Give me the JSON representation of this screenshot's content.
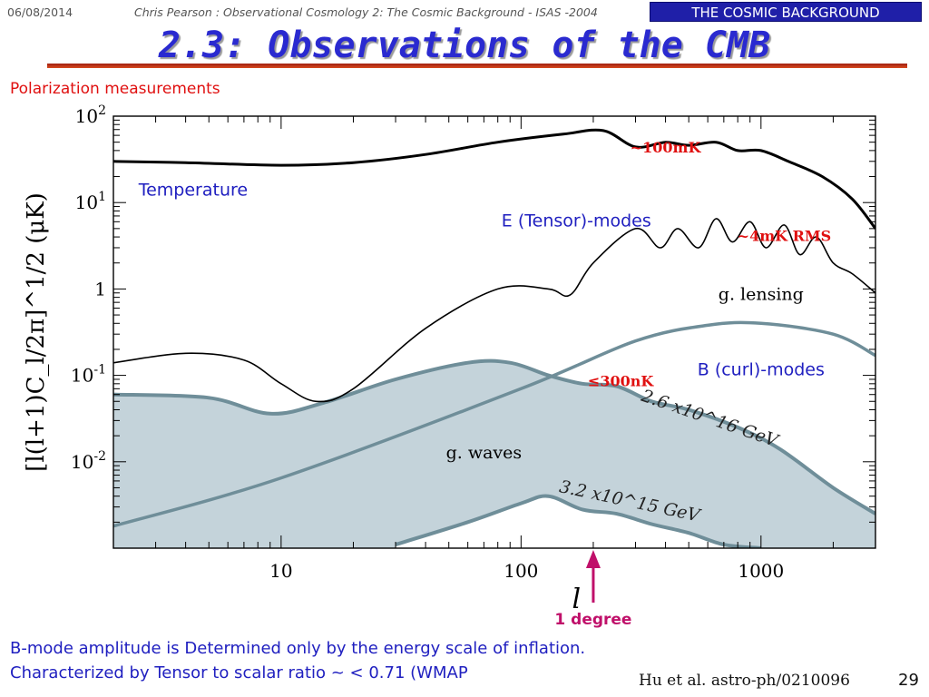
{
  "header": {
    "date": "06/08/2014",
    "author_line": "Chris Pearson :   Observational Cosmology 2: The Cosmic Background - ISAS -2004",
    "badge": "THE COSMIC BACKGROUND"
  },
  "slide": {
    "title": "2.3: Observations of the CMB",
    "subtitle": "Polarization measurements",
    "footer_line1": "B-mode amplitude is Determined only by the energy scale of inflation.",
    "footer_line2": "Characterized by Tensor to scalar ratio ~ < 0.71 (WMAP",
    "citation": "Hu et al. astro-ph/0210096",
    "page_number": "29"
  },
  "colors": {
    "title": "#2a2ad0",
    "label_blue": "#2020c0",
    "annotation_red": "#e01010",
    "arrow": "#c0106a",
    "fill": "#c4d3da",
    "fill_edge": "#6f8e99",
    "lensing": "#6f8e99",
    "curves": "#000000"
  },
  "chart_data": {
    "type": "line",
    "xscale": "log",
    "yscale": "log",
    "xlim": [
      2,
      3000
    ],
    "ylim": [
      0.001,
      100
    ],
    "xlabel": "l",
    "ylabel": "[l(l+1)C_l/2π]^1/2 (μK)",
    "x_ticks": [
      {
        "value": 10,
        "label": "10"
      },
      {
        "value": 100,
        "label": "100"
      },
      {
        "value": 1000,
        "label": "1000"
      }
    ],
    "y_ticks": [
      {
        "value": 100,
        "base": "10",
        "exp": "2"
      },
      {
        "value": 10,
        "base": "10",
        "exp": "1"
      },
      {
        "value": 1,
        "base": "1",
        "exp": ""
      },
      {
        "value": 0.1,
        "base": "10",
        "exp": "-1"
      },
      {
        "value": 0.01,
        "base": "10",
        "exp": "-2"
      }
    ],
    "series": [
      {
        "name": "Temperature",
        "style": "thick",
        "x": [
          2,
          4,
          10,
          20,
          40,
          80,
          150,
          220,
          300,
          400,
          500,
          650,
          800,
          1000,
          1300,
          1800,
          2400,
          3000
        ],
        "y": [
          30,
          29,
          27,
          29,
          36,
          50,
          62,
          68,
          44,
          50,
          46,
          50,
          40,
          40,
          30,
          20,
          11,
          5
        ]
      },
      {
        "name": "E (Tensor)-modes",
        "style": "thin",
        "x": [
          2,
          4,
          7,
          10,
          14,
          20,
          40,
          80,
          130,
          160,
          200,
          300,
          380,
          450,
          550,
          650,
          760,
          900,
          1050,
          1250,
          1450,
          1700,
          2000,
          2400,
          3000
        ],
        "y": [
          0.14,
          0.18,
          0.15,
          0.08,
          0.05,
          0.07,
          0.35,
          1.0,
          1.0,
          0.85,
          2.0,
          5.0,
          3.0,
          5.0,
          3.0,
          6.5,
          3.5,
          6.0,
          3.0,
          5.5,
          2.5,
          4.0,
          2.0,
          1.5,
          0.9
        ]
      },
      {
        "name": "g. lensing",
        "style": "lensing",
        "x": [
          2,
          10,
          100,
          300,
          600,
          1000,
          2000,
          3000
        ],
        "y": [
          0.0018,
          0.0065,
          0.07,
          0.25,
          0.38,
          0.4,
          0.3,
          0.17
        ]
      },
      {
        "name": "g. waves",
        "label_on_curve": "2.6 x10^16 GeV",
        "style": "filled",
        "x": [
          2,
          5,
          9,
          15,
          30,
          60,
          90,
          130,
          180,
          250,
          350,
          500,
          800,
          1200,
          2000,
          3000
        ],
        "y": [
          0.06,
          0.055,
          0.036,
          0.048,
          0.09,
          0.14,
          0.14,
          0.1,
          0.08,
          0.075,
          0.05,
          0.04,
          0.025,
          0.014,
          0.005,
          0.0025
        ]
      },
      {
        "name": "3.2 x10^15 GeV",
        "style": "band-lower",
        "x": [
          30,
          60,
          100,
          130,
          180,
          250,
          350,
          500,
          700,
          1000
        ],
        "y": [
          0.0011,
          0.002,
          0.0033,
          0.004,
          0.0028,
          0.0025,
          0.0019,
          0.0015,
          0.0011,
          0.0008
        ]
      }
    ],
    "annotations": [
      {
        "text": "~100mK",
        "x": 400,
        "y": 38,
        "color": "annotation_red"
      },
      {
        "text": "~4mK RMS",
        "x": 1250,
        "y": 3.6,
        "color": "annotation_red"
      },
      {
        "text": "≤300nK",
        "x": 260,
        "y": 0.075,
        "color": "annotation_red"
      },
      {
        "text": "Temperature",
        "x": 4.3,
        "y": 12,
        "color": "label_blue"
      },
      {
        "text": "E (Tensor)-modes",
        "x": 170,
        "y": 5.3,
        "color": "label_blue"
      },
      {
        "text": "B (curl)-modes",
        "x": 1000,
        "y": 0.1,
        "color": "label_blue"
      },
      {
        "text": "g. lensing",
        "x": 1000,
        "y": 0.75,
        "color": "curves"
      },
      {
        "text": "g. waves",
        "x": 70,
        "y": 0.011,
        "color": "curves"
      },
      {
        "text": "1 degree",
        "x": 200,
        "y": 6e-06,
        "color": "arrow"
      }
    ],
    "arrow_x": 200,
    "grid": false,
    "legend": "none"
  }
}
